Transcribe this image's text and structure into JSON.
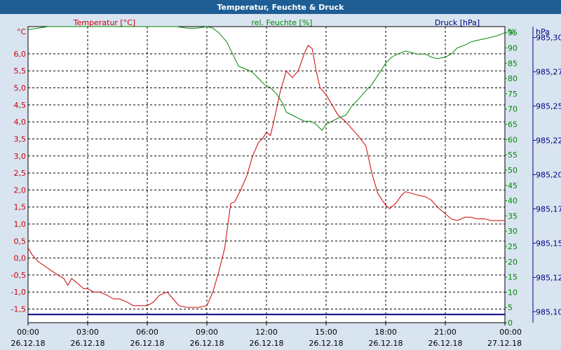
{
  "window_title": "Temperatur, Feuchte & Druck",
  "chart_data": {
    "type": "line",
    "title": "Temperatur, Feuchte & Druck",
    "x_ticks": [
      {
        "time": "00:00",
        "date": "26.12.18"
      },
      {
        "time": "03:00",
        "date": "26.12.18"
      },
      {
        "time": "06:00",
        "date": "26.12.18"
      },
      {
        "time": "09:00",
        "date": "26.12.18"
      },
      {
        "time": "12:00",
        "date": "26.12.18"
      },
      {
        "time": "15:00",
        "date": "26.12.18"
      },
      {
        "time": "18:00",
        "date": "26.12.18"
      },
      {
        "time": "21:00",
        "date": "26.12.18"
      },
      {
        "time": "00:00",
        "date": "27.12.18"
      }
    ],
    "x_range_hours": [
      0,
      24
    ],
    "grid": true,
    "axes": {
      "temperature": {
        "label": "Temperatur [°C]",
        "unit": "°C",
        "range": [
          -1.9,
          6.8
        ],
        "ticks": [
          "6,0",
          "5,5",
          "5,0",
          "4,5",
          "4,0",
          "3,5",
          "3,0",
          "2,5",
          "2,0",
          "1,5",
          "1,0",
          "0,5",
          "0,0",
          "-0,5",
          "-1,0",
          "-1,5"
        ],
        "tick_values": [
          6.0,
          5.5,
          5.0,
          4.5,
          4.0,
          3.5,
          3.0,
          2.5,
          2.0,
          1.5,
          1.0,
          0.5,
          0.0,
          -0.5,
          -1.0,
          -1.5
        ],
        "color": "#cc0000"
      },
      "humidity": {
        "label": "rel. Feuchte [%]",
        "unit": "%",
        "range": [
          0,
          97
        ],
        "ticks": [
          "95",
          "90",
          "85",
          "80",
          "75",
          "70",
          "65",
          "60",
          "55",
          "50",
          "45",
          "40",
          "35",
          "30",
          "25",
          "20",
          "15",
          "10",
          "5",
          "0"
        ],
        "tick_values": [
          95,
          90,
          85,
          80,
          75,
          70,
          65,
          60,
          55,
          50,
          45,
          40,
          35,
          30,
          25,
          20,
          15,
          10,
          5,
          0
        ],
        "color": "#008800"
      },
      "pressure": {
        "label": "Druck [hPa]",
        "unit": "hPa",
        "range": [
          985.092,
          985.308
        ],
        "ticks": [
          "985,30",
          "985,27",
          "985,25",
          "985,22",
          "985,20",
          "985,17",
          "985,15",
          "985,12",
          "985,10"
        ],
        "tick_values": [
          985.3,
          985.275,
          985.25,
          985.225,
          985.2,
          985.175,
          985.15,
          985.125,
          985.1
        ],
        "color": "#000080"
      }
    },
    "series": [
      {
        "name": "Temperatur [°C]",
        "axis": "temperature",
        "color": "#cc0000",
        "x": [
          0,
          0.2,
          0.5,
          1,
          1.5,
          1.8,
          2,
          2.2,
          2.4,
          2.6,
          2.8,
          3,
          3.3,
          3.6,
          4,
          4.3,
          4.6,
          5,
          5.3,
          5.6,
          6,
          6.3,
          6.6,
          7,
          7.3,
          7.6,
          8,
          8.3,
          8.6,
          9,
          9.3,
          9.6,
          9.9,
          10.2,
          10.4,
          10.7,
          11,
          11.3,
          11.6,
          11.8,
          12,
          12.2,
          12.4,
          12.7,
          13,
          13.3,
          13.6,
          13.9,
          14.1,
          14.3,
          14.5,
          14.7,
          15,
          15.3,
          15.6,
          16,
          16.3,
          16.6,
          17,
          17.3,
          17.6,
          18,
          18.2,
          18.5,
          18.8,
          19,
          19.3,
          19.6,
          20,
          20.3,
          20.6,
          21,
          21.3,
          21.6,
          22,
          22.3,
          22.6,
          23,
          23.3,
          23.6,
          24
        ],
        "y": [
          0.3,
          0.1,
          -0.1,
          -0.3,
          -0.5,
          -0.6,
          -0.8,
          -0.6,
          -0.7,
          -0.8,
          -0.9,
          -0.9,
          -1.0,
          -1.0,
          -1.1,
          -1.2,
          -1.2,
          -1.3,
          -1.4,
          -1.4,
          -1.4,
          -1.3,
          -1.1,
          -1.0,
          -1.2,
          -1.4,
          -1.45,
          -1.45,
          -1.45,
          -1.4,
          -1.0,
          -0.4,
          0.3,
          1.6,
          1.65,
          2.0,
          2.4,
          3.0,
          3.4,
          3.5,
          3.7,
          3.6,
          4.1,
          4.9,
          5.5,
          5.3,
          5.5,
          6.0,
          6.25,
          6.15,
          5.5,
          5.0,
          4.8,
          4.5,
          4.2,
          4.0,
          3.8,
          3.6,
          3.3,
          2.5,
          1.9,
          1.55,
          1.45,
          1.6,
          1.85,
          1.95,
          1.9,
          1.85,
          1.8,
          1.7,
          1.5,
          1.3,
          1.15,
          1.1,
          1.2,
          1.2,
          1.15,
          1.15,
          1.1,
          1.1,
          1.1
        ]
      },
      {
        "name": "rel. Feuchte [%]",
        "axis": "humidity",
        "color": "#008800",
        "x": [
          0,
          0.5,
          1,
          1.5,
          2,
          3,
          4,
          5,
          6,
          7,
          7.5,
          8,
          8.5,
          9,
          9.3,
          9.6,
          10,
          10.3,
          10.6,
          11,
          11.3,
          11.6,
          11.9,
          12.2,
          12.5,
          12.8,
          13,
          13.3,
          13.6,
          13.9,
          14.2,
          14.5,
          14.8,
          15,
          15.3,
          15.6,
          16,
          16.3,
          16.6,
          17,
          17.3,
          17.6,
          18,
          18.3,
          18.6,
          19,
          19.3,
          19.6,
          20,
          20.3,
          20.6,
          21,
          21.3,
          21.6,
          22,
          22.3,
          22.6,
          23,
          23.3,
          23.6,
          24
        ],
        "y": [
          96,
          96.5,
          97,
          97.5,
          98,
          98,
          98,
          98,
          98,
          98,
          97,
          96.5,
          96.5,
          97,
          96.5,
          95,
          92,
          88,
          84,
          83,
          82,
          80,
          78,
          77,
          75,
          72,
          69,
          68,
          67,
          66,
          66,
          65,
          63,
          65,
          66,
          67,
          68,
          71,
          73,
          76,
          78,
          81,
          85,
          87,
          88,
          89,
          88.5,
          88,
          88,
          87,
          86.5,
          87,
          88,
          90,
          91,
          92,
          92.5,
          93,
          93.5,
          94,
          95
        ]
      },
      {
        "name": "Druck [hPa]",
        "axis": "pressure",
        "color": "#000080",
        "x": [
          0,
          24
        ],
        "y": [
          985.098,
          985.098
        ]
      }
    ]
  }
}
